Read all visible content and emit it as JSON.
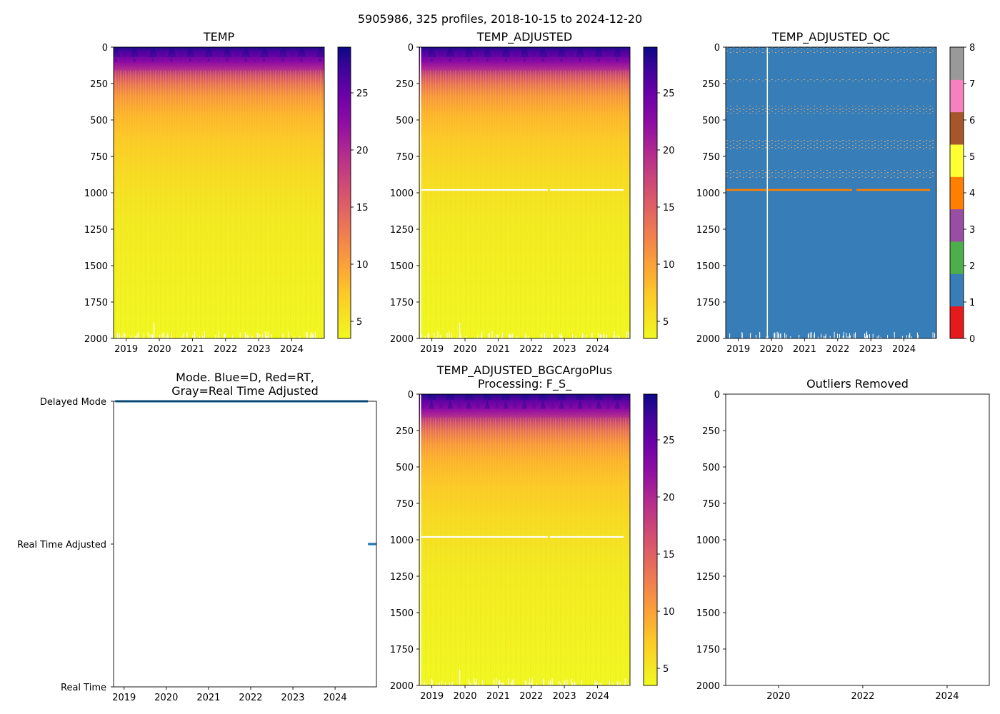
{
  "figure_title": "5905986, 325 profiles, 2018-10-15 to 2024-12-20",
  "chart_data": [
    {
      "id": "temp",
      "type": "heatmap",
      "title": "TEMP",
      "xlim": [
        2018.62,
        2024.98
      ],
      "ylim": [
        2000,
        0
      ],
      "yticks": [
        0,
        250,
        500,
        750,
        1000,
        1250,
        1500,
        1750,
        2000
      ],
      "xticks": [
        2019,
        2020,
        2021,
        2022,
        2023,
        2024
      ],
      "colorbar": {
        "cmap": "plasma_r",
        "range": [
          3.5,
          29
        ],
        "ticks": [
          5,
          10,
          15,
          20,
          25
        ]
      },
      "gap_depth": null
    },
    {
      "id": "temp_adjusted",
      "type": "heatmap",
      "title": "TEMP_ADJUSTED",
      "xlim": [
        2018.62,
        2024.98
      ],
      "ylim": [
        2000,
        0
      ],
      "yticks": [
        0,
        250,
        500,
        750,
        1000,
        1250,
        1500,
        1750,
        2000
      ],
      "xticks": [
        2019,
        2020,
        2021,
        2022,
        2023,
        2024
      ],
      "colorbar": {
        "cmap": "plasma_r",
        "range": [
          3.5,
          29
        ],
        "ticks": [
          5,
          10,
          15,
          20,
          25
        ]
      },
      "gap_depth": 980
    },
    {
      "id": "temp_adjusted_qc",
      "type": "heatmap",
      "title": "TEMP_ADJUSTED_QC",
      "xlim": [
        2018.62,
        2024.98
      ],
      "ylim": [
        2000,
        0
      ],
      "yticks": [
        0,
        250,
        500,
        750,
        1000,
        1250,
        1500,
        1750,
        2000
      ],
      "xticks": [
        2019,
        2020,
        2021,
        2022,
        2023,
        2024
      ],
      "dominant_flag": 1,
      "flag4_depth": 980,
      "colorbar": {
        "ticks": [
          0,
          1,
          2,
          3,
          4,
          5,
          6,
          7,
          8
        ],
        "colors": [
          "#e41a1c",
          "#377eb8",
          "#4daf4a",
          "#984ea3",
          "#ff7f00",
          "#ffff33",
          "#a65628",
          "#f781bf",
          "#999999"
        ]
      }
    },
    {
      "id": "mode",
      "type": "scatter",
      "title_lines": [
        "Mode. Blue=D, Red=RT,",
        "Gray=Real Time Adjusted"
      ],
      "xlim": [
        2018.75,
        2024.98
      ],
      "xticks": [
        2019,
        2020,
        2021,
        2022,
        2023,
        2024
      ],
      "ytick_labels": [
        "Delayed Mode",
        "Real Time Adjusted",
        "Real Time"
      ],
      "series": [
        {
          "name": "Delayed Mode",
          "x_range": [
            2018.79,
            2024.78
          ],
          "color": "#1f77b4"
        },
        {
          "name": "Real Time Adjusted",
          "x_range": [
            2024.78,
            2024.98
          ],
          "color": "#1f77b4"
        }
      ]
    },
    {
      "id": "temp_adjusted_bgc",
      "type": "heatmap",
      "title_lines": [
        "TEMP_ADJUSTED_BGCArgoPlus",
        "Processing: F_S_"
      ],
      "xlim": [
        2018.62,
        2024.98
      ],
      "ylim": [
        2000,
        0
      ],
      "yticks": [
        0,
        250,
        500,
        750,
        1000,
        1250,
        1500,
        1750,
        2000
      ],
      "xticks": [
        2019,
        2020,
        2021,
        2022,
        2023,
        2024
      ],
      "colorbar": {
        "cmap": "plasma_r",
        "range": [
          3.5,
          29
        ],
        "ticks": [
          5,
          10,
          15,
          20,
          25
        ]
      },
      "gap_depth": 980
    },
    {
      "id": "outliers",
      "type": "scatter",
      "title": "Outliers Removed",
      "xlim": [
        2018.75,
        2025
      ],
      "ylim": [
        2000,
        0
      ],
      "yticks": [
        0,
        250,
        500,
        750,
        1000,
        1250,
        1500,
        1750,
        2000
      ],
      "xticks": [
        2020,
        2022,
        2024
      ],
      "values": []
    }
  ]
}
